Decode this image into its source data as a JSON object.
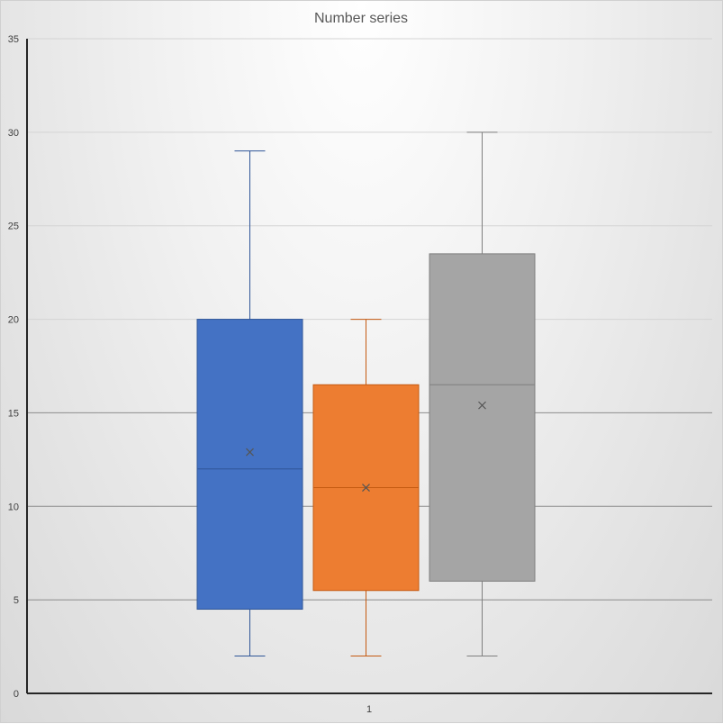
{
  "chart_data": {
    "type": "boxplot",
    "title": "Number series",
    "xlabel": "",
    "ylabel": "",
    "categories": [
      "1"
    ],
    "ylim": [
      0,
      35
    ],
    "yticks": [
      0,
      5,
      10,
      15,
      20,
      25,
      30,
      35
    ],
    "grid": true,
    "legend": "none",
    "series": [
      {
        "color": "#4472C4",
        "whisker_color": "#2F5597",
        "min": 2,
        "q1": 4.5,
        "median": 12,
        "q3": 20,
        "max": 29,
        "mean": 12.9
      },
      {
        "color": "#ED7D31",
        "whisker_color": "#C55A11",
        "min": 2,
        "q1": 5.5,
        "median": 11,
        "q3": 16.5,
        "max": 20,
        "mean": 11
      },
      {
        "color": "#A5A5A5",
        "whisker_color": "#7F7F7F",
        "min": 2,
        "q1": 6,
        "median": 16.5,
        "q3": 23.5,
        "max": 30,
        "mean": 15.4
      }
    ]
  }
}
